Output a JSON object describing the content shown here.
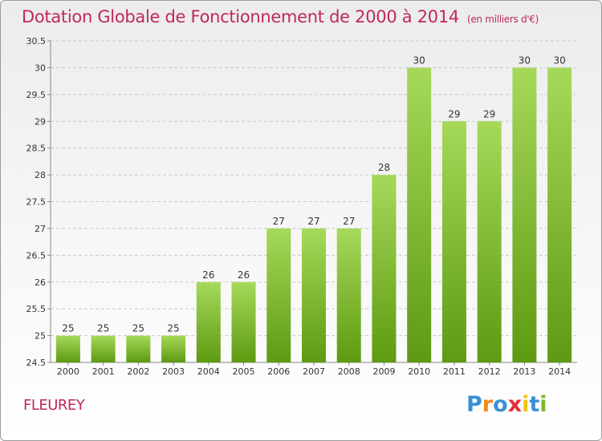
{
  "header": {
    "title": "Dotation Globale de Fonctionnement de 2000 à 2014",
    "subtitle": "(en milliers d'€)"
  },
  "footer": {
    "commune": "FLEUREY",
    "logo": "Proxiti"
  },
  "colors": {
    "bar_light": "#a6d95a",
    "bar_dark": "#5e9a12",
    "title": "#c0285a"
  },
  "chart_data": {
    "type": "bar",
    "title": "Dotation Globale de Fonctionnement de 2000 à 2014",
    "subtitle": "(en milliers d'€)",
    "categories": [
      "2000",
      "2001",
      "2002",
      "2003",
      "2004",
      "2005",
      "2006",
      "2007",
      "2008",
      "2009",
      "2010",
      "2011",
      "2012",
      "2013",
      "2014"
    ],
    "values": [
      25,
      25,
      25,
      25,
      26,
      26,
      27,
      27,
      27,
      28,
      30,
      29,
      29,
      30,
      30
    ],
    "ylim": [
      24.5,
      30.5
    ],
    "yticks": [
      "24.5",
      "25",
      "25.5",
      "26",
      "26.5",
      "27",
      "27.5",
      "28",
      "28.5",
      "29",
      "29.5",
      "30",
      "30.5"
    ],
    "grid": true,
    "legend": "none"
  }
}
